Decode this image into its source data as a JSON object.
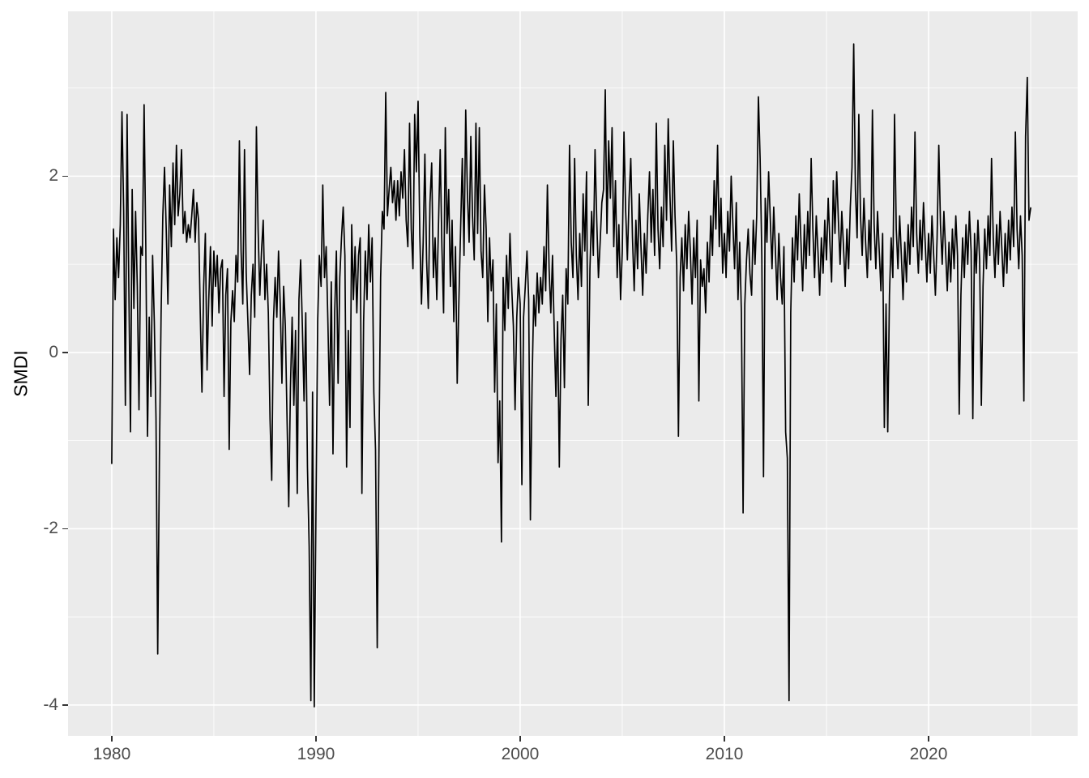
{
  "figure": {
    "background": "#FFFFFF"
  },
  "chart_data": {
    "type": "line",
    "title": "",
    "xlabel": "",
    "ylabel": "SMDI",
    "legend": "none",
    "grid": true,
    "panel_background": "#EBEBEB",
    "grid_color": "#FFFFFF",
    "line_color": "#000000",
    "tick_label_color": "#4D4D4D",
    "axis_title_color": "#000000",
    "tick_mark_color": "#333333",
    "x_ticks": [
      1980,
      1990,
      2000,
      2010,
      2020
    ],
    "x_tick_labels": [
      "1980",
      "1990",
      "2000",
      "2010",
      "2020"
    ],
    "x_minor_ticks": [
      1985,
      1995,
      2005,
      2015,
      2025
    ],
    "y_ticks": [
      -4,
      -2,
      0,
      2
    ],
    "y_tick_labels": [
      "-4",
      "-2",
      "0",
      "2"
    ],
    "y_minor_ticks": [
      -3,
      -1,
      1,
      3
    ],
    "xlim": [
      1977.86,
      2027.3
    ],
    "ylim": [
      -4.35,
      3.87
    ],
    "series": [
      {
        "name": "SMDI",
        "x_start": 1980.0,
        "x_step": 0.083333,
        "values": [
          -1.26,
          1.4,
          0.6,
          1.3,
          0.85,
          1.45,
          2.73,
          1.6,
          -0.6,
          2.7,
          0.8,
          -0.9,
          1.85,
          0.5,
          1.6,
          0.75,
          -0.65,
          1.2,
          1.1,
          2.81,
          1.2,
          -0.95,
          0.4,
          -0.5,
          1.1,
          0.35,
          -0.75,
          -3.42,
          -1.2,
          0.45,
          1.55,
          2.1,
          1.4,
          0.55,
          1.9,
          1.2,
          2.15,
          1.45,
          2.35,
          1.55,
          1.8,
          2.3,
          1.35,
          1.6,
          1.25,
          1.45,
          1.3,
          1.55,
          1.85,
          1.25,
          1.7,
          1.5,
          0.45,
          -0.45,
          0.75,
          1.35,
          -0.2,
          0.6,
          1.2,
          0.3,
          1.15,
          0.75,
          1.1,
          0.45,
          0.95,
          1.05,
          -0.5,
          0.65,
          0.95,
          -1.1,
          0.35,
          0.7,
          0.35,
          1.1,
          0.8,
          2.4,
          1.15,
          0.55,
          2.3,
          0.9,
          0.35,
          -0.25,
          0.65,
          1.0,
          0.4,
          2.56,
          1.4,
          0.65,
          1.15,
          1.5,
          0.6,
          1.0,
          0.45,
          -0.75,
          -1.45,
          0.35,
          0.85,
          0.4,
          1.15,
          0.55,
          -0.35,
          0.75,
          0.3,
          -0.75,
          -1.75,
          -0.4,
          0.4,
          -0.6,
          0.25,
          -1.6,
          0.6,
          1.05,
          0.3,
          -0.55,
          0.45,
          -1.3,
          -2.2,
          -3.95,
          -0.45,
          -4.02,
          -1.8,
          0.35,
          1.1,
          0.75,
          1.9,
          0.85,
          1.2,
          0.35,
          -0.6,
          0.8,
          -1.15,
          0.45,
          1.15,
          -0.35,
          0.85,
          1.3,
          1.65,
          1.1,
          -1.3,
          0.25,
          -0.85,
          1.45,
          0.6,
          1.2,
          0.45,
          1.1,
          1.3,
          -1.6,
          0.35,
          1.15,
          0.6,
          1.45,
          0.8,
          1.3,
          -0.45,
          -1.1,
          -3.35,
          -1.15,
          0.85,
          1.6,
          1.4,
          2.95,
          1.55,
          1.85,
          2.1,
          1.7,
          1.95,
          1.5,
          1.95,
          1.55,
          2.05,
          1.75,
          2.3,
          1.5,
          1.2,
          2.6,
          1.4,
          0.95,
          2.7,
          2.05,
          2.85,
          1.35,
          0.55,
          1.25,
          2.25,
          1.05,
          0.5,
          1.7,
          2.15,
          0.85,
          1.3,
          0.6,
          1.45,
          2.3,
          1.2,
          0.45,
          2.55,
          1.35,
          1.85,
          0.75,
          1.5,
          0.35,
          1.2,
          -0.35,
          0.6,
          1.4,
          2.2,
          1.1,
          2.75,
          1.8,
          1.25,
          2.45,
          1.55,
          1.05,
          2.6,
          1.35,
          2.55,
          1.15,
          0.85,
          1.9,
          1.4,
          0.35,
          1.3,
          0.7,
          1.05,
          -0.45,
          0.55,
          -1.25,
          -0.55,
          -2.15,
          0.85,
          0.25,
          1.1,
          0.5,
          1.35,
          0.75,
          0.3,
          -0.65,
          0.4,
          0.85,
          0.55,
          -1.5,
          0.4,
          0.75,
          1.15,
          0.6,
          -1.9,
          -0.35,
          0.65,
          0.3,
          0.9,
          0.45,
          0.85,
          0.55,
          1.2,
          0.7,
          1.9,
          0.95,
          0.45,
          1.1,
          0.25,
          -0.5,
          0.35,
          -1.3,
          0.15,
          0.65,
          -0.4,
          0.95,
          0.55,
          2.35,
          1.25,
          0.85,
          2.2,
          1.1,
          0.6,
          1.35,
          0.75,
          1.8,
          1.15,
          2.05,
          -0.6,
          0.95,
          1.6,
          1.1,
          2.3,
          1.5,
          0.85,
          1.25,
          1.7,
          1.85,
          2.98,
          1.35,
          2.4,
          1.75,
          2.55,
          1.2,
          1.95,
          0.85,
          1.45,
          0.6,
          1.15,
          2.5,
          1.6,
          1.05,
          1.75,
          2.2,
          1.3,
          0.7,
          1.5,
          0.95,
          1.8,
          1.2,
          0.65,
          1.35,
          0.9,
          1.55,
          2.05,
          1.25,
          1.85,
          1.1,
          2.6,
          1.4,
          0.95,
          1.65,
          1.2,
          2.35,
          1.5,
          2.65,
          1.8,
          1.15,
          2.4,
          1.55,
          1.0,
          -0.95,
          0.85,
          1.3,
          0.7,
          1.45,
          0.95,
          1.6,
          1.15,
          0.55,
          1.3,
          0.85,
          1.5,
          -0.55,
          1.05,
          0.75,
          0.95,
          0.45,
          1.25,
          0.8,
          1.55,
          1.1,
          1.95,
          1.4,
          2.35,
          1.2,
          1.75,
          0.9,
          1.35,
          0.85,
          1.6,
          1.15,
          2.0,
          1.45,
          0.95,
          1.7,
          0.6,
          1.25,
          0.45,
          -1.82,
          0.55,
          1.05,
          1.4,
          0.9,
          0.65,
          1.5,
          1.0,
          1.55,
          2.9,
          2.2,
          1.1,
          -1.41,
          1.75,
          1.25,
          2.05,
          1.5,
          0.95,
          1.65,
          1.15,
          0.6,
          1.35,
          0.85,
          0.55,
          1.2,
          -0.9,
          -1.2,
          -3.95,
          0.45,
          1.3,
          0.8,
          1.55,
          1.05,
          1.8,
          1.25,
          0.7,
          1.45,
          0.95,
          1.6,
          1.1,
          2.2,
          1.4,
          0.85,
          1.55,
          1.15,
          0.65,
          1.3,
          0.9,
          1.5,
          1.05,
          1.75,
          1.25,
          0.8,
          1.95,
          1.35,
          2.05,
          1.5,
          1.0,
          1.6,
          1.2,
          0.75,
          1.4,
          0.95,
          1.65,
          2.1,
          3.5,
          1.85,
          1.3,
          2.7,
          1.55,
          1.1,
          1.75,
          1.25,
          0.85,
          1.5,
          1.05,
          2.75,
          1.45,
          0.95,
          1.6,
          1.15,
          0.7,
          1.35,
          -0.85,
          0.55,
          -0.9,
          0.65,
          1.3,
          0.85,
          2.7,
          1.4,
          0.95,
          1.55,
          1.1,
          0.6,
          1.25,
          0.8,
          1.45,
          1.0,
          1.65,
          1.2,
          2.5,
          1.35,
          0.9,
          1.5,
          1.05,
          1.7,
          1.25,
          0.8,
          1.35,
          0.9,
          1.55,
          1.1,
          0.65,
          1.3,
          2.35,
          1.45,
          1.0,
          1.6,
          1.15,
          0.7,
          1.25,
          0.8,
          1.4,
          0.95,
          1.55,
          1.1,
          -0.7,
          0.65,
          1.3,
          0.85,
          1.45,
          1.0,
          1.6,
          1.15,
          -0.75,
          1.35,
          0.9,
          1.5,
          1.05,
          -0.6,
          0.75,
          1.4,
          0.95,
          1.55,
          1.1,
          2.2,
          1.3,
          0.85,
          1.45,
          1.0,
          1.6,
          1.2,
          0.75,
          1.35,
          0.9,
          1.5,
          1.05,
          1.65,
          1.2,
          2.5,
          1.4,
          0.95,
          1.55,
          1.1,
          -0.55,
          2.45,
          3.12,
          1.5,
          1.64
        ]
      }
    ]
  }
}
